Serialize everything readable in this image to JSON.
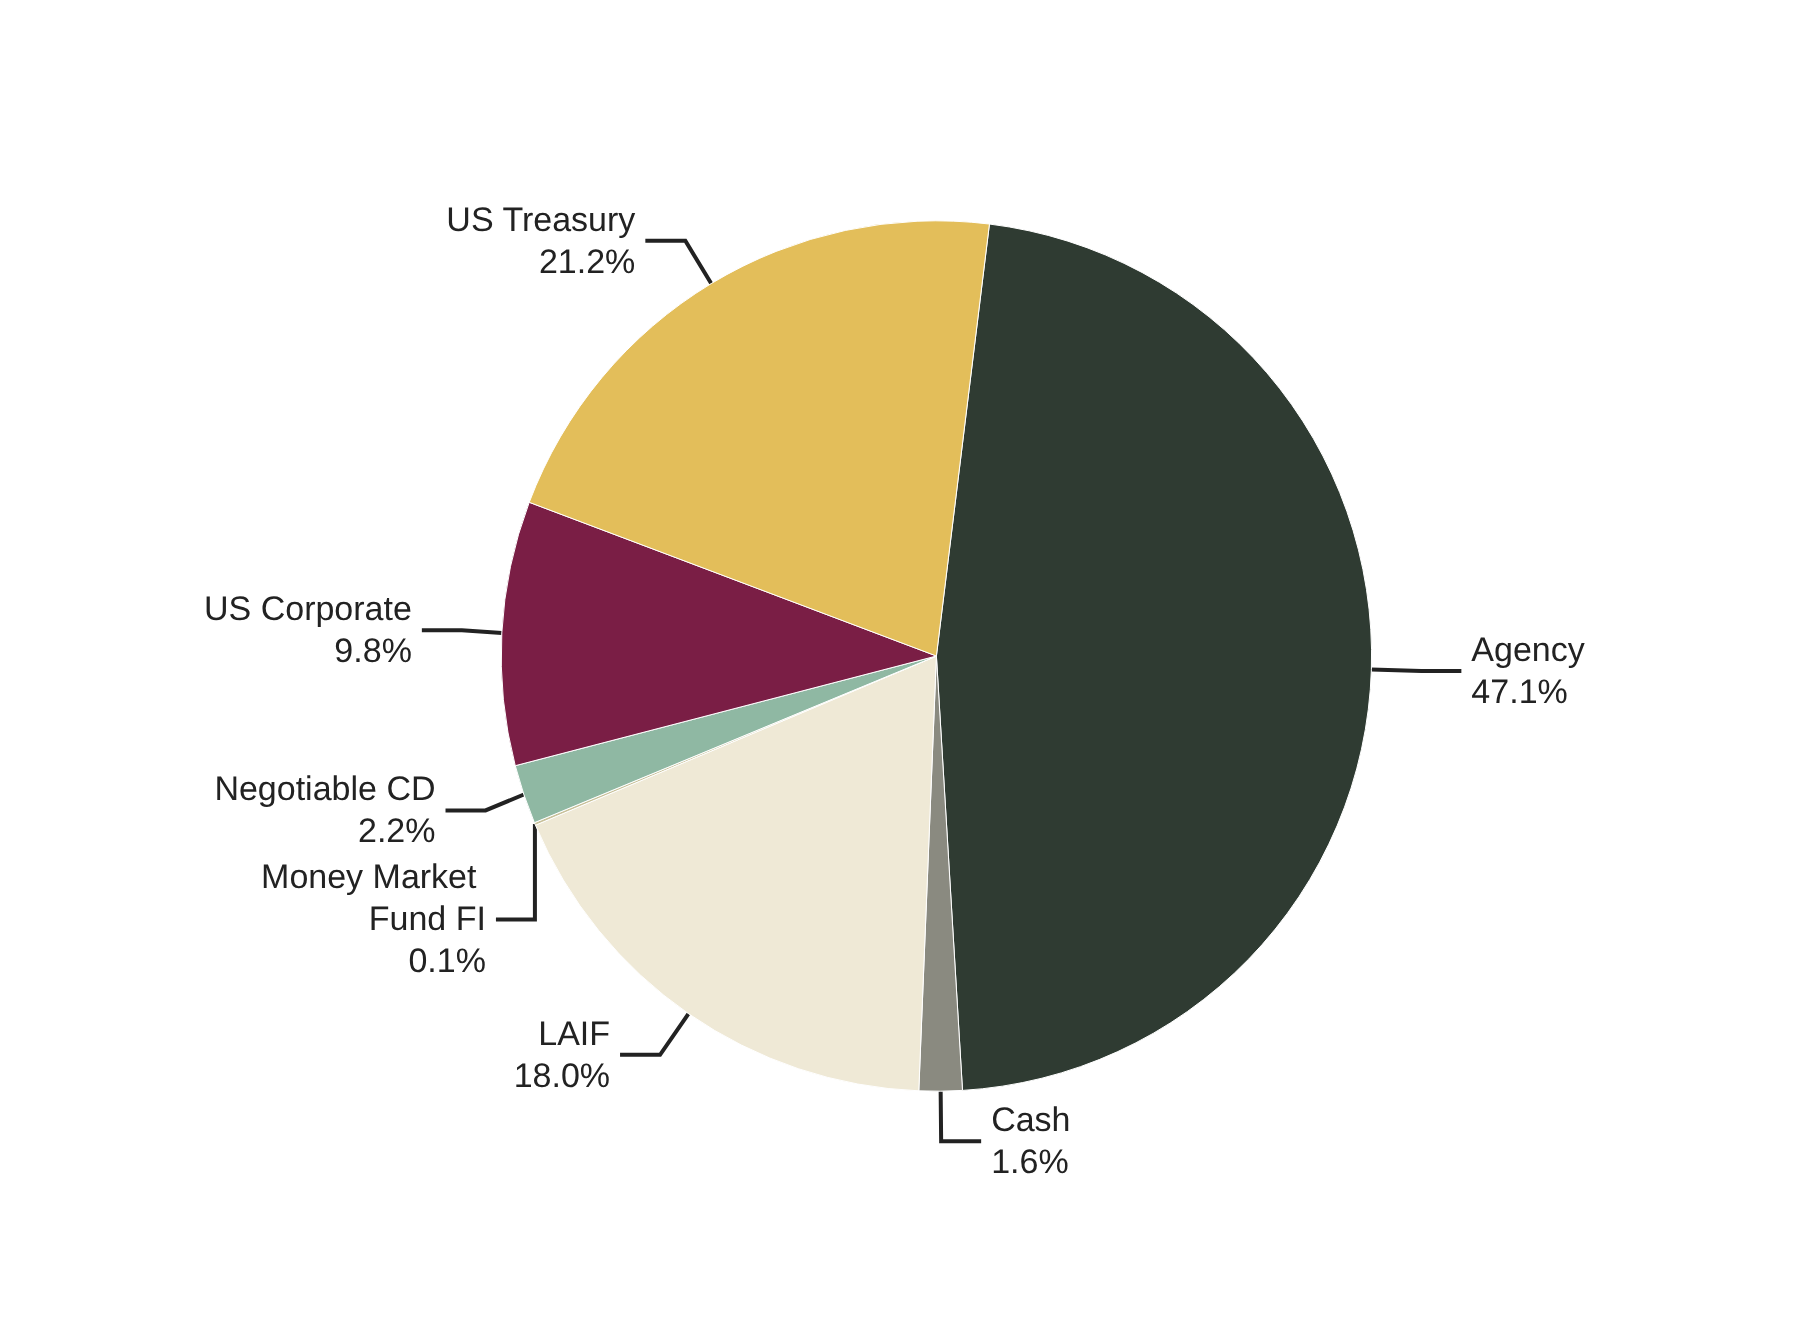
{
  "chart_data": {
    "type": "pie",
    "categories": [
      "Agency",
      "Cash",
      "LAIF",
      "Money Market Fund FI",
      "Negotiable CD",
      "US Corporate",
      "US Treasury"
    ],
    "values": [
      47.1,
      1.6,
      18.0,
      0.1,
      2.2,
      9.8,
      21.2
    ],
    "colors": [
      "#2f3b32",
      "#8a8a80",
      "#efe9d6",
      "#c9c19a",
      "#8fb8a3",
      "#7a1e45",
      "#e3be5a"
    ],
    "value_labels": [
      "47.1%",
      "1.6%",
      "18.0%",
      "0.1%",
      "2.2%",
      "9.8%",
      "21.2%"
    ]
  }
}
